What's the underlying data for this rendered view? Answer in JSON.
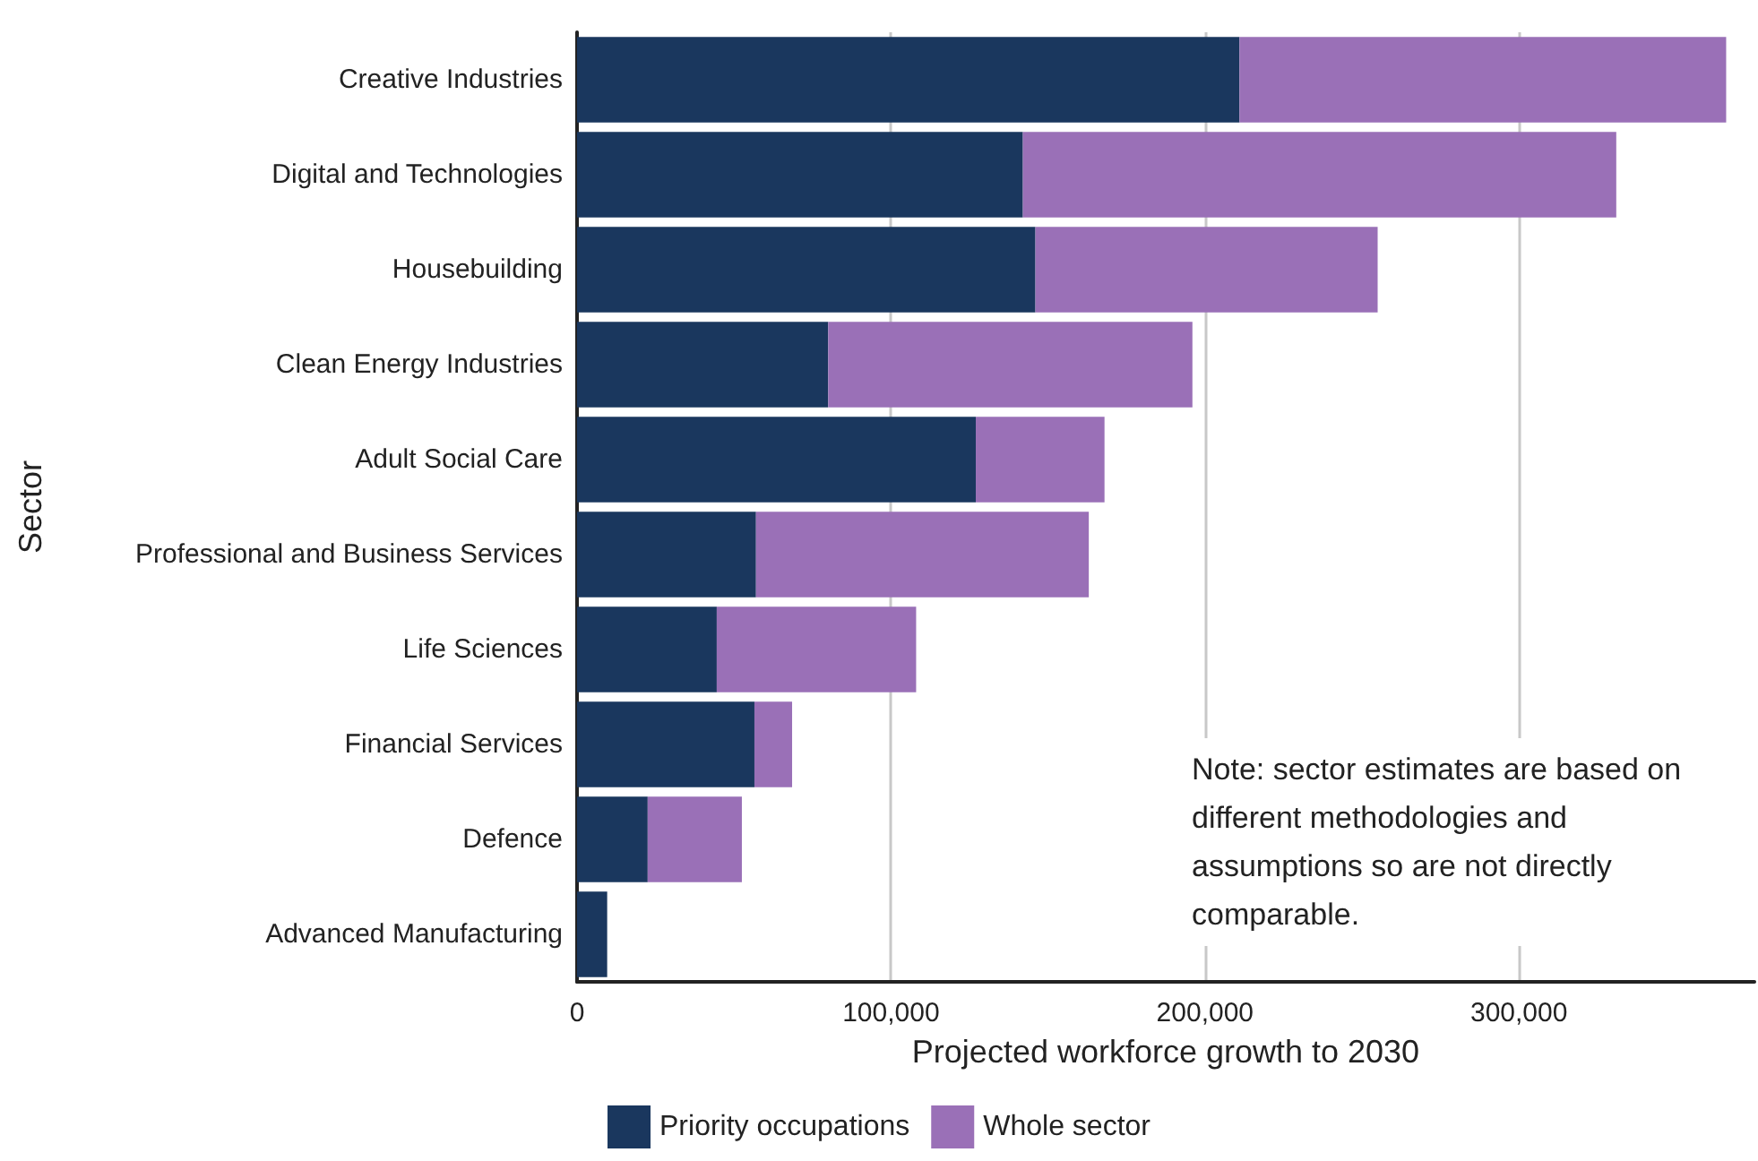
{
  "chart_data": {
    "type": "bar",
    "orientation": "horizontal",
    "stacked": true,
    "xlabel": "Projected workforce growth to 2030",
    "ylabel": "Sector",
    "categories": [
      "Creative Industries",
      "Digital and Technologies",
      "Housebuilding",
      "Clean Energy Industries",
      "Adult Social Care",
      "Professional and Business Services",
      "Life Sciences",
      "Financial Services",
      "Defence",
      "Advanced Manufacturing"
    ],
    "series": [
      {
        "name": "Priority occupations",
        "color": "#1a375e",
        "values": [
          211000,
          142000,
          146000,
          80000,
          127000,
          57000,
          44500,
          56500,
          22500,
          9600
        ]
      },
      {
        "name": "Whole sector",
        "color": "#9a70b7",
        "values": [
          155000,
          189000,
          109000,
          116000,
          41000,
          106000,
          63500,
          12000,
          30000,
          null
        ]
      }
    ],
    "xlim": [
      0,
      375000
    ],
    "xticks": [
      {
        "value": 0,
        "label": "0"
      },
      {
        "value": 100000,
        "label": "100,000"
      },
      {
        "value": 200000,
        "label": "200,000"
      },
      {
        "value": 300000,
        "label": "300,000"
      }
    ],
    "grid": "x",
    "legend": "bottom",
    "annotations": [
      "Note: sector estimates are based on different methodologies and assumptions so are not directly comparable."
    ]
  }
}
